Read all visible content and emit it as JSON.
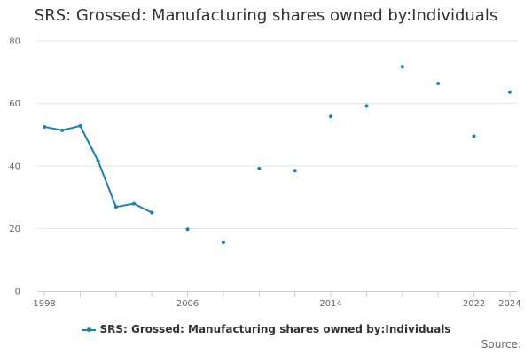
{
  "colors": {
    "series": "#1a80b6",
    "grid": "#e6e6e6",
    "axis": "#cccccc",
    "text": "#333333",
    "muted": "#666666"
  },
  "chart_data": {
    "type": "line",
    "title": "SRS: Grossed: Manufacturing shares owned by:Individuals",
    "xlabel": "",
    "ylabel": "",
    "xlim": [
      1997.6,
      2024.4
    ],
    "ylim": [
      0,
      80
    ],
    "x_ticks": [
      1998,
      2006,
      2014,
      2022,
      2024
    ],
    "y_ticks": [
      0,
      20,
      40,
      60,
      80
    ],
    "grid": true,
    "legend": "bottom-center",
    "source_label": "Source:",
    "series": [
      {
        "name": "SRS: Grossed: Manufacturing shares owned by:Individuals",
        "x": [
          1998,
          1999,
          2000,
          2001,
          2002,
          2003,
          2004,
          2006,
          2008,
          2010,
          2012,
          2014,
          2016,
          2018,
          2020,
          2022,
          2024
        ],
        "values": [
          52.5,
          51.4,
          52.8,
          41.6,
          26.9,
          27.9,
          25.1,
          19.8,
          15.6,
          39.2,
          38.5,
          55.8,
          59.2,
          71.7,
          66.4,
          49.5,
          63.6
        ]
      }
    ]
  }
}
